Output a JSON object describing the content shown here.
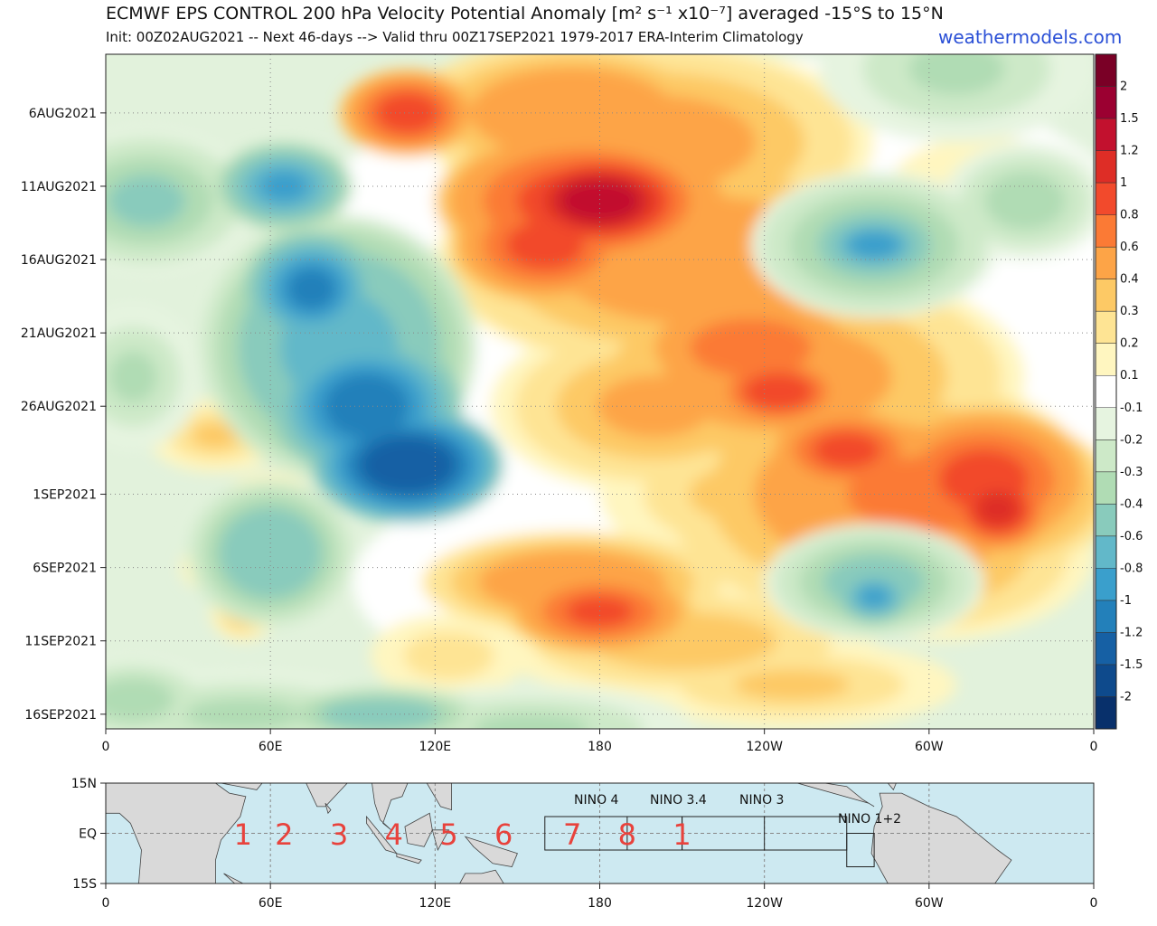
{
  "title": "ECMWF EPS CONTROL 200 hPa Velocity Potential Anomaly [m² s⁻¹ x10⁻⁷] averaged -15°S to 15°N",
  "subtitle": "Init: 00Z02AUG2021 -- Next 46-days --> Valid thru 00Z17SEP2021 1979-2017 ERA-Interim Climatology",
  "site": "weathermodels.com",
  "chart_data": {
    "type": "heatmap",
    "title": "ECMWF EPS CONTROL 200 hPa Velocity Potential Anomaly [m² s⁻¹ x10⁻⁷] averaged -15°S to 15°N",
    "x_axis": {
      "ticks": [
        "0",
        "60E",
        "120E",
        "180",
        "120W",
        "60W",
        "0"
      ],
      "tick_lon": [
        0,
        60,
        120,
        180,
        240,
        300,
        360
      ],
      "range": [
        0,
        360
      ]
    },
    "y_axis": {
      "ticks": [
        "6AUG2021",
        "11AUG2021",
        "16AUG2021",
        "21AUG2021",
        "26AUG2021",
        "1SEP2021",
        "6SEP2021",
        "11SEP2021",
        "16SEP2021"
      ],
      "tick_day": [
        4,
        9,
        14,
        19,
        24,
        30,
        35,
        40,
        45
      ],
      "range_days": [
        0,
        46
      ],
      "start": "02AUG2021",
      "end": "17SEP2021",
      "orientation": "time increases downward"
    },
    "colorbar": {
      "levels": [
        "2",
        "1.5",
        "1.2",
        "1",
        "0.8",
        "0.6",
        "0.4",
        "0.3",
        "0.2",
        "0.1",
        "-0.1",
        "-0.2",
        "-0.3",
        "-0.4",
        "-0.6",
        "-0.8",
        "-1",
        "-1.2",
        "-1.5",
        "-2"
      ],
      "colors": [
        "#7a0026",
        "#9b0031",
        "#c2112e",
        "#de2d26",
        "#f24a2c",
        "#fb7a35",
        "#fda447",
        "#fdc965",
        "#fee494",
        "#fff6c0",
        "#ffffff",
        "#e6f4e0",
        "#cde9c8",
        "#b0dcb4",
        "#89cbbc",
        "#62b8c9",
        "#3a9fcc",
        "#2380ba",
        "#1660a4",
        "#0e4a8c",
        "#08306b"
      ]
    },
    "features": [
      {
        "label": "positive anomaly band",
        "lon_start": [
          160,
          175
        ],
        "lon_end": [
          300,
          320
        ],
        "days": [
          0,
          33
        ],
        "peak_value": 1.5
      },
      {
        "label": "negative anomaly band",
        "lon_start": [
          0,
          60
        ],
        "lon_end": [
          100,
          140
        ],
        "days": [
          0,
          28
        ],
        "peak_value": -1.5
      },
      {
        "label": "positive anomaly",
        "lon": [
          140,
          210
        ],
        "days": [
          33,
          40
        ],
        "peak_value": 1.0
      },
      {
        "label": "negative anomaly",
        "lon": [
          260,
          300
        ],
        "days": [
          9,
          16
        ],
        "peak_value": -1.2
      }
    ]
  },
  "map": {
    "lat_ticks": [
      "15N",
      "EQ",
      "15S"
    ],
    "lon_ticks": [
      "0",
      "60E",
      "120E",
      "180",
      "120W",
      "60W",
      "0"
    ],
    "region_numbers": [
      "1",
      "2",
      "3",
      "4",
      "5",
      "6",
      "7",
      "8",
      "1"
    ],
    "region_lon": [
      50,
      65,
      85,
      105,
      125,
      145,
      170,
      190,
      210
    ],
    "nino_labels": [
      "NINO 4",
      "NINO 3.4",
      "NINO 3",
      "NINO 1+2"
    ],
    "nino_boxes": [
      {
        "name": "NINO 4",
        "lon": [
          160,
          210
        ],
        "lat": [
          -5,
          5
        ]
      },
      {
        "name": "NINO 3.4",
        "lon": [
          190,
          240
        ],
        "lat": [
          -5,
          5
        ]
      },
      {
        "name": "NINO 3",
        "lon": [
          210,
          270
        ],
        "lat": [
          -5,
          5
        ]
      },
      {
        "name": "NINO 1+2",
        "lon": [
          270,
          280
        ],
        "lat": [
          -10,
          0
        ]
      }
    ]
  }
}
